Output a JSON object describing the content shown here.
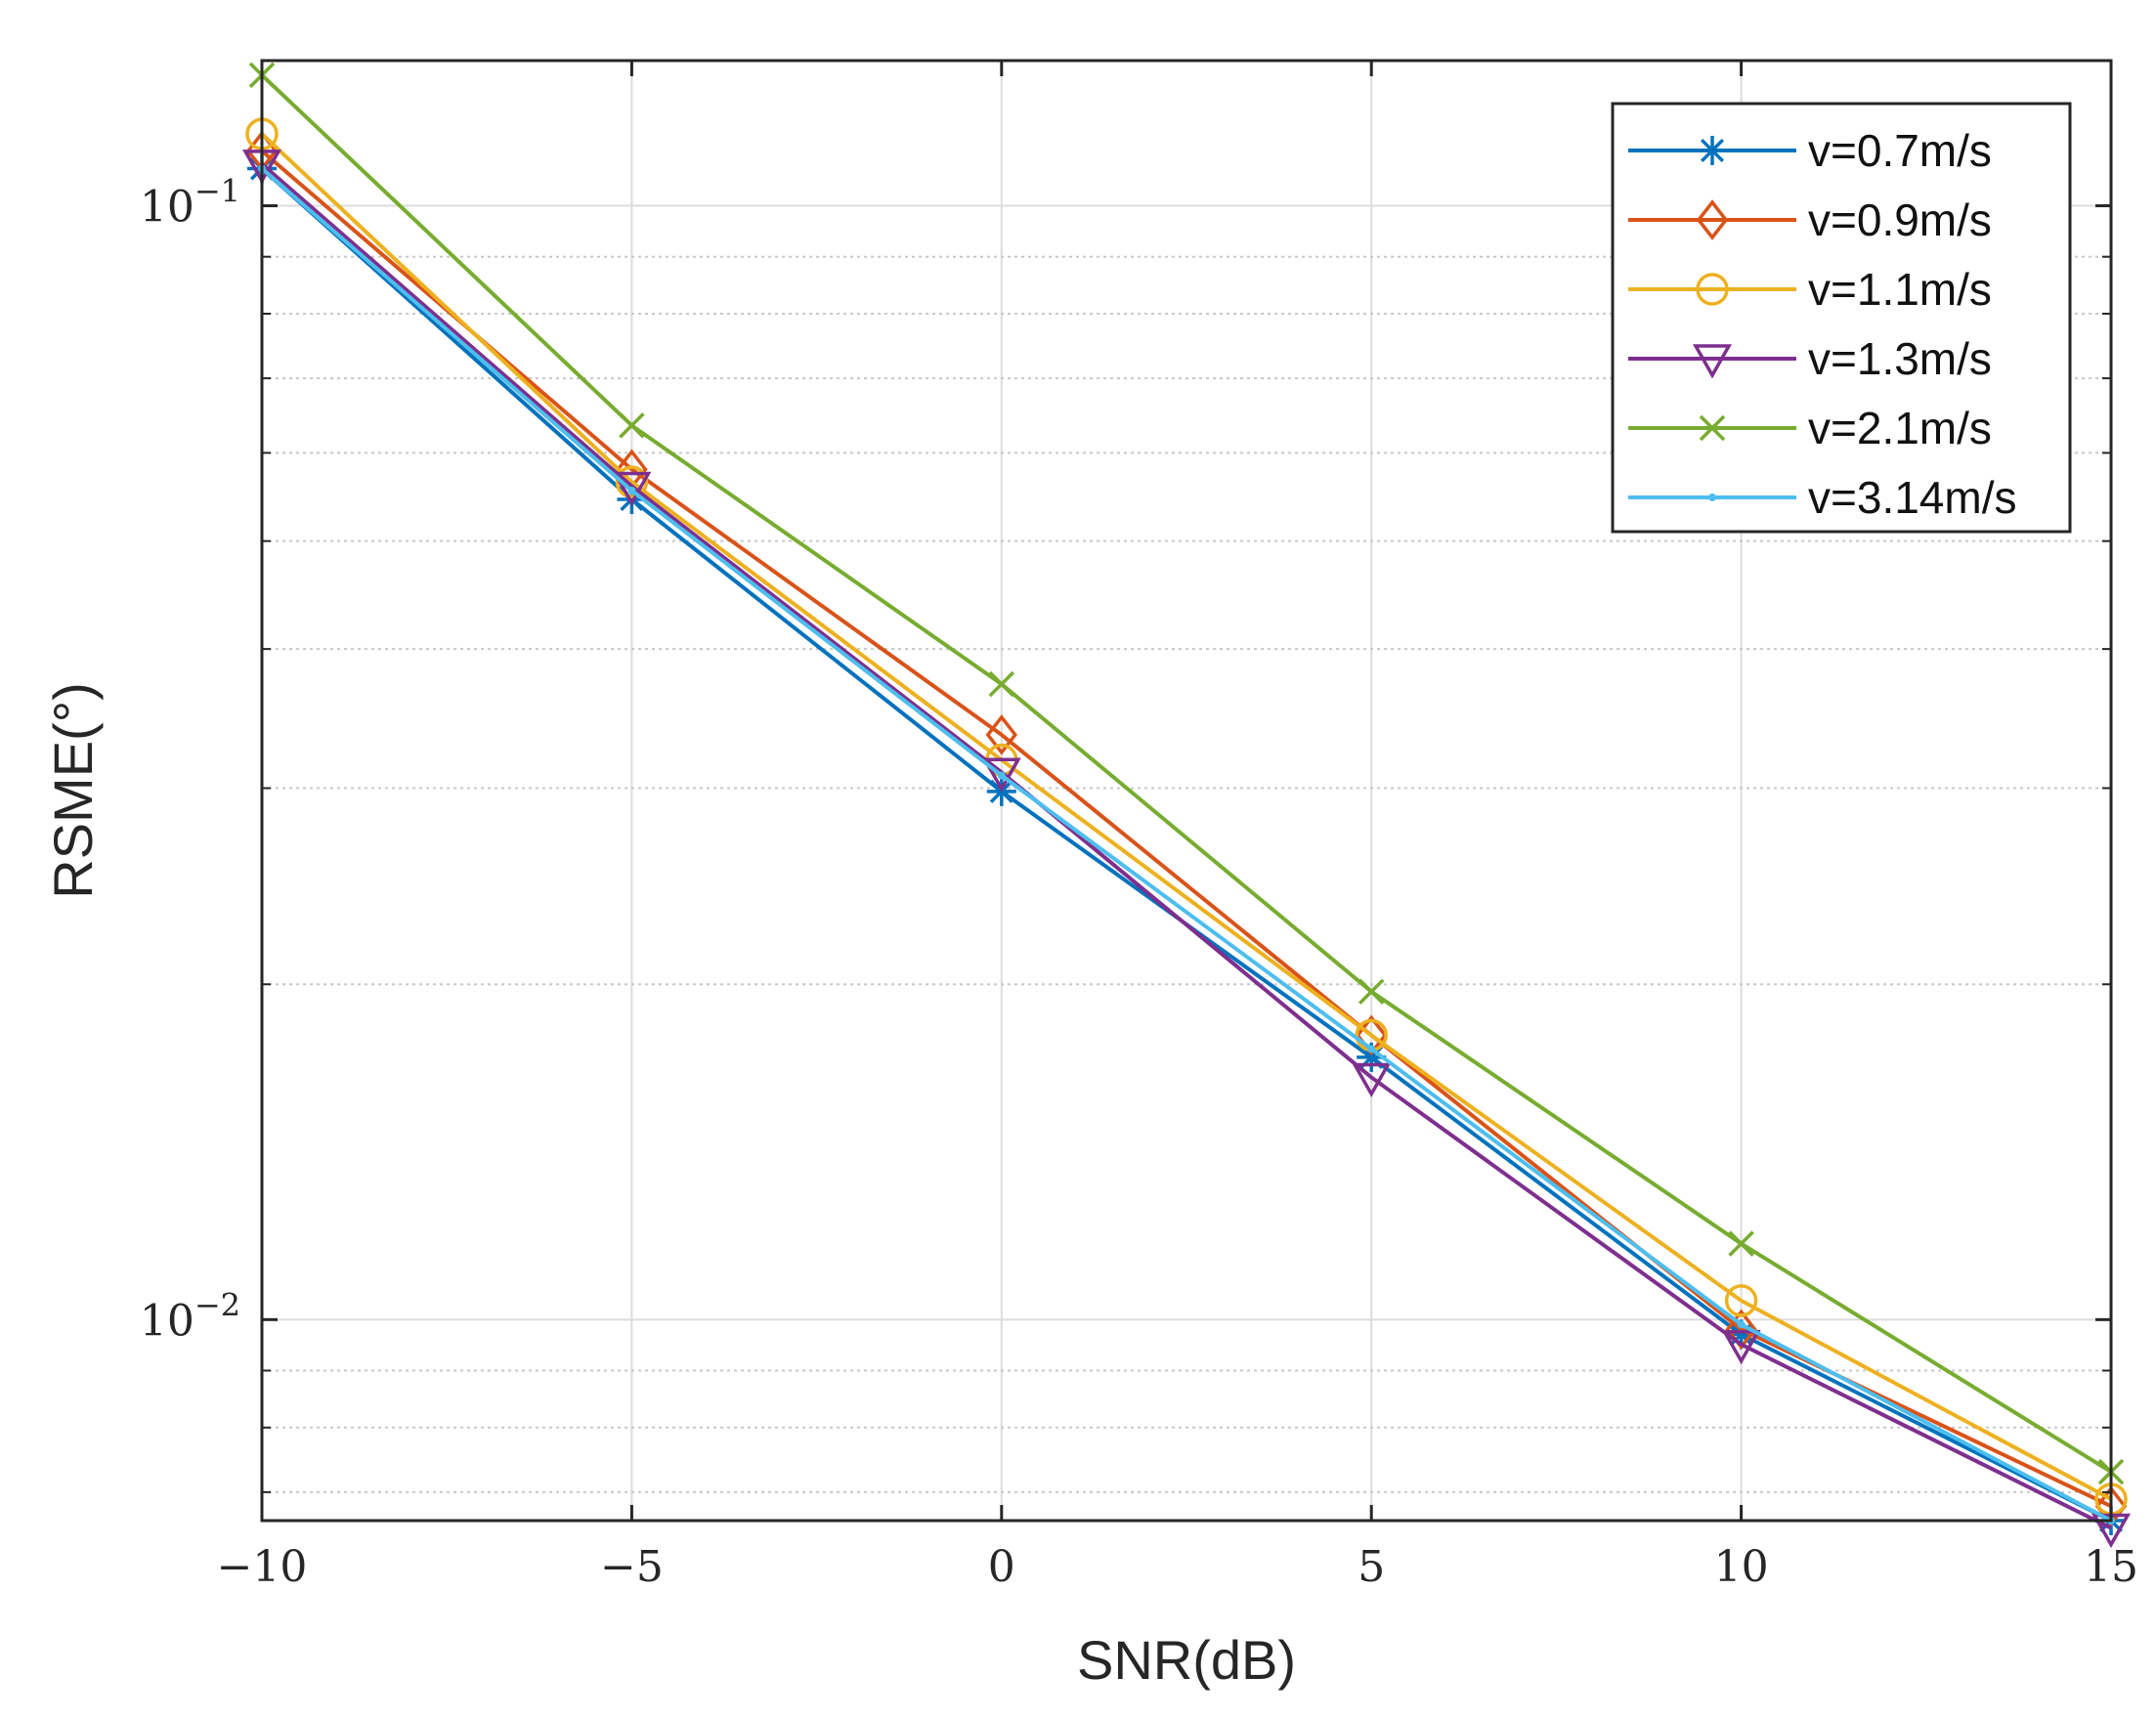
{
  "chart_data": {
    "type": "line",
    "title": "",
    "xlabel": "SNR(dB)",
    "ylabel": "RSME(°)",
    "xscale": "linear",
    "yscale": "log",
    "xlim": [
      -10,
      15
    ],
    "ylim": [
      0.0066,
      0.135
    ],
    "x": [
      -10,
      -5,
      0,
      5,
      10,
      15
    ],
    "xticks": [
      {
        "value": -10,
        "label": "−10"
      },
      {
        "value": -5,
        "label": "−5"
      },
      {
        "value": 0,
        "label": "0"
      },
      {
        "value": 5,
        "label": "5"
      },
      {
        "value": 10,
        "label": "10"
      },
      {
        "value": 15,
        "label": "15"
      }
    ],
    "yticks": [
      {
        "value": 0.1,
        "base": "10",
        "exponent": "−1"
      },
      {
        "value": 0.01,
        "base": "10",
        "exponent": "−2"
      }
    ],
    "grid": true,
    "legend_position": "top-right",
    "series": [
      {
        "name": "v=0.7m/s",
        "color": "#0072BD",
        "marker": "asterisk",
        "values": [
          0.108,
          0.0545,
          0.0298,
          0.0172,
          0.0097,
          0.0066
        ]
      },
      {
        "name": "v=0.9m/s",
        "color": "#D95319",
        "marker": "diamond",
        "values": [
          0.112,
          0.058,
          0.0335,
          0.018,
          0.0098,
          0.0068
        ]
      },
      {
        "name": "v=1.1m/s",
        "color": "#EDB120",
        "marker": "circle",
        "values": [
          0.116,
          0.0565,
          0.0318,
          0.018,
          0.0104,
          0.0069
        ]
      },
      {
        "name": "v=1.3m/s",
        "color": "#7E2F8E",
        "marker": "triangle-down",
        "values": [
          0.109,
          0.056,
          0.031,
          0.0165,
          0.0095,
          0.0065
        ]
      },
      {
        "name": "v=2.1m/s",
        "color": "#77AC30",
        "marker": "x",
        "values": [
          0.131,
          0.0635,
          0.0372,
          0.0197,
          0.0117,
          0.0073
        ]
      },
      {
        "name": "v=3.14m/s",
        "color": "#4DBEEE",
        "marker": "point",
        "values": [
          0.108,
          0.0555,
          0.0308,
          0.0175,
          0.0099,
          0.0066
        ]
      }
    ]
  }
}
